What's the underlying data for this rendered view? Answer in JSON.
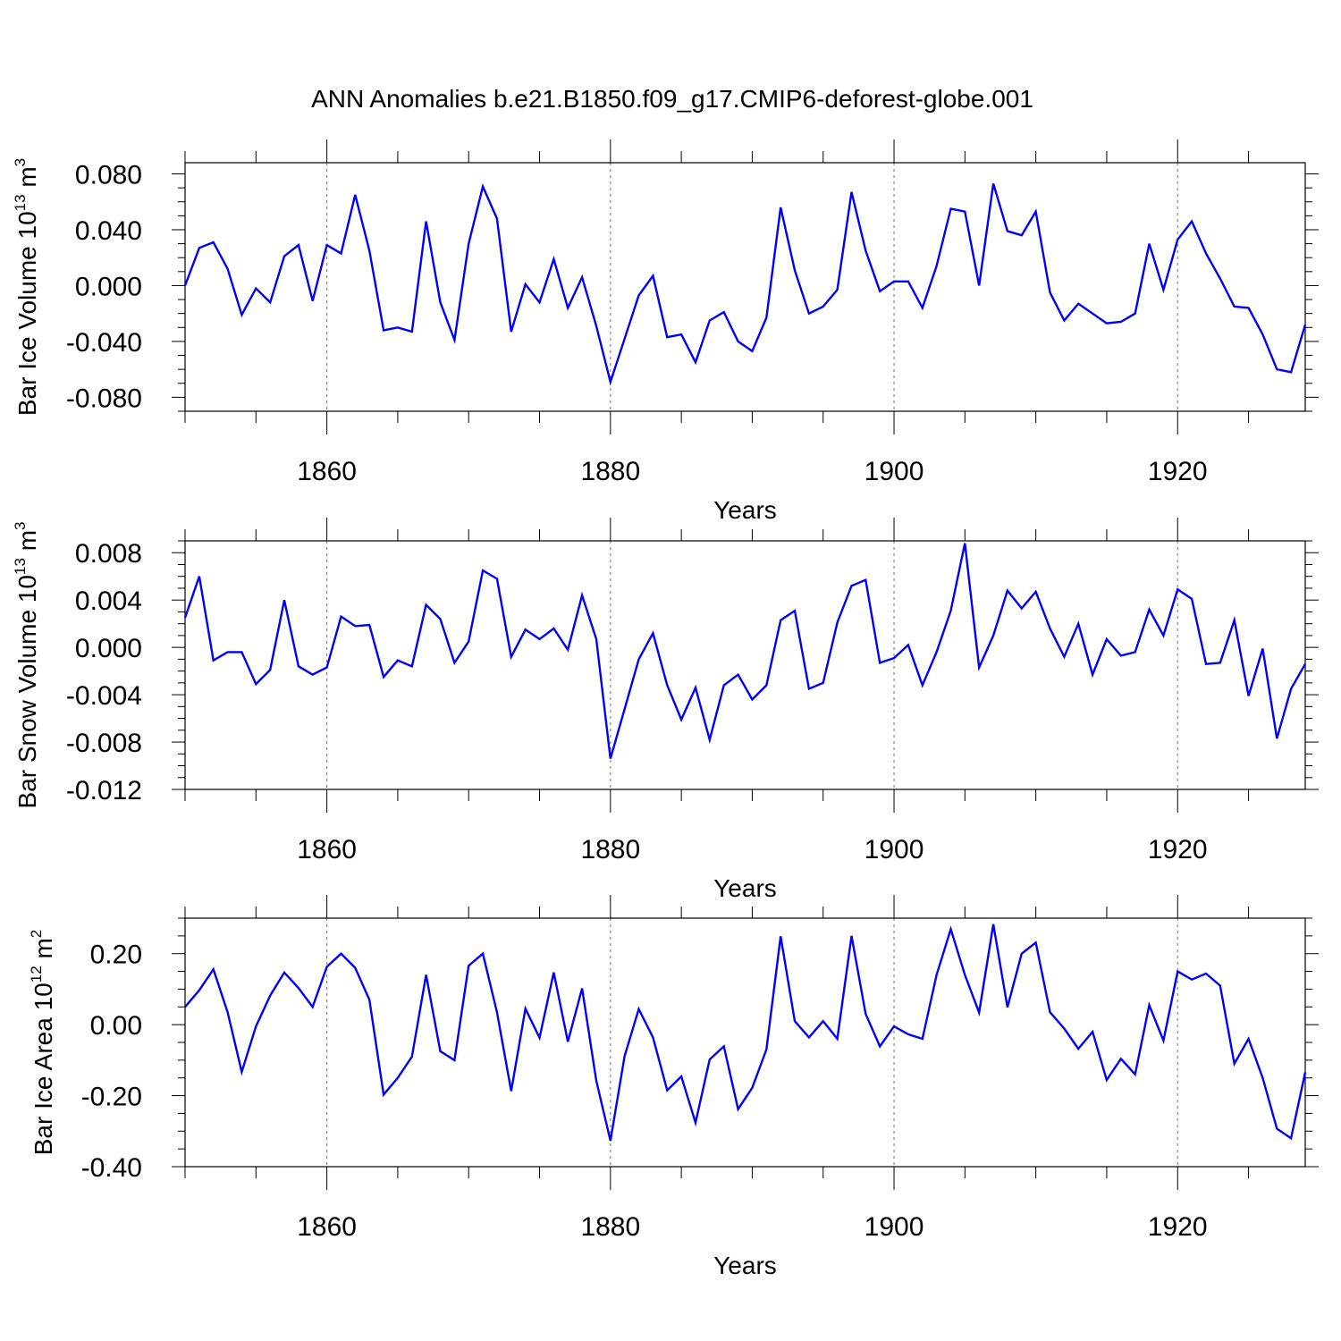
{
  "title": "ANN Anomalies b.e21.B1850.f09_g17.CMIP6-deforest-globe.001",
  "line_color": "#0000ff",
  "chart_data": [
    {
      "type": "line",
      "ylabel": "Bar Ice Volume",
      "yunit_base": "10",
      "yunit_exp": "13",
      "yunit_name": "m",
      "yunit_pow": "3",
      "xlabel": "Years",
      "xlim": [
        1850,
        1929
      ],
      "ylim": [
        -0.09,
        0.088
      ],
      "yticks": [
        -0.08,
        -0.04,
        0.0,
        0.04,
        0.08
      ],
      "ytick_labels": [
        "-0.080",
        "-0.040",
        "0.000",
        "0.040",
        "0.080"
      ],
      "xticks": [
        1860,
        1880,
        1900,
        1920
      ],
      "xtick_labels": [
        "1860",
        "1880",
        "1900",
        "1920"
      ],
      "grid": "dashed vertical at major x ticks",
      "x": [
        1850,
        1851,
        1852,
        1853,
        1854,
        1855,
        1856,
        1857,
        1858,
        1859,
        1860,
        1861,
        1862,
        1863,
        1864,
        1865,
        1866,
        1867,
        1868,
        1869,
        1870,
        1871,
        1872,
        1873,
        1874,
        1875,
        1876,
        1877,
        1878,
        1879,
        1880,
        1881,
        1882,
        1883,
        1884,
        1885,
        1886,
        1887,
        1888,
        1889,
        1890,
        1891,
        1892,
        1893,
        1894,
        1895,
        1896,
        1897,
        1898,
        1899,
        1900,
        1901,
        1902,
        1903,
        1904,
        1905,
        1906,
        1907,
        1908,
        1909,
        1910,
        1911,
        1912,
        1913,
        1914,
        1915,
        1916,
        1917,
        1918,
        1919,
        1920,
        1921,
        1922,
        1923,
        1924,
        1925,
        1926,
        1927,
        1928,
        1929
      ],
      "values": [
        0.0,
        0.027,
        0.031,
        0.012,
        -0.021,
        -0.002,
        -0.012,
        0.021,
        0.029,
        -0.011,
        0.029,
        0.023,
        0.065,
        0.025,
        -0.032,
        -0.03,
        -0.033,
        0.046,
        -0.012,
        -0.039,
        0.03,
        0.071,
        0.048,
        -0.033,
        0.001,
        -0.012,
        0.019,
        -0.016,
        0.006,
        -0.029,
        -0.069,
        -0.038,
        -0.007,
        0.007,
        -0.037,
        -0.035,
        -0.055,
        -0.025,
        -0.019,
        -0.04,
        -0.047,
        -0.023,
        0.056,
        0.011,
        -0.02,
        -0.015,
        -0.003,
        0.067,
        0.025,
        -0.004,
        0.003,
        0.003,
        -0.016,
        0.014,
        0.055,
        0.053,
        0.0,
        0.073,
        0.039,
        0.036,
        0.053,
        -0.005,
        -0.025,
        -0.013,
        -0.02,
        -0.027,
        -0.026,
        -0.02,
        0.03,
        -0.003,
        0.033,
        0.046,
        0.023,
        0.005,
        -0.015,
        -0.016,
        -0.035,
        -0.06,
        -0.062,
        -0.028
      ]
    },
    {
      "type": "line",
      "ylabel": "Bar Snow Volume",
      "yunit_base": "10",
      "yunit_exp": "13",
      "yunit_name": "m",
      "yunit_pow": "3",
      "xlabel": "Years",
      "xlim": [
        1850,
        1929
      ],
      "ylim": [
        -0.012,
        0.009
      ],
      "yticks": [
        -0.012,
        -0.008,
        -0.004,
        0.0,
        0.004,
        0.008
      ],
      "ytick_labels": [
        "-0.012",
        "-0.008",
        "-0.004",
        "0.000",
        "0.004",
        "0.008"
      ],
      "xticks": [
        1860,
        1880,
        1900,
        1920
      ],
      "xtick_labels": [
        "1860",
        "1880",
        "1900",
        "1920"
      ],
      "grid": "dashed vertical at major x ticks",
      "x": [
        1850,
        1851,
        1852,
        1853,
        1854,
        1855,
        1856,
        1857,
        1858,
        1859,
        1860,
        1861,
        1862,
        1863,
        1864,
        1865,
        1866,
        1867,
        1868,
        1869,
        1870,
        1871,
        1872,
        1873,
        1874,
        1875,
        1876,
        1877,
        1878,
        1879,
        1880,
        1881,
        1882,
        1883,
        1884,
        1885,
        1886,
        1887,
        1888,
        1889,
        1890,
        1891,
        1892,
        1893,
        1894,
        1895,
        1896,
        1897,
        1898,
        1899,
        1900,
        1901,
        1902,
        1903,
        1904,
        1905,
        1906,
        1907,
        1908,
        1909,
        1910,
        1911,
        1912,
        1913,
        1914,
        1915,
        1916,
        1917,
        1918,
        1919,
        1920,
        1921,
        1922,
        1923,
        1924,
        1925,
        1926,
        1927,
        1928,
        1929
      ],
      "values": [
        0.0025,
        0.006,
        -0.0011,
        -0.0004,
        -0.0004,
        -0.0031,
        -0.0019,
        0.004,
        -0.0016,
        -0.0023,
        -0.0017,
        0.0026,
        0.0018,
        0.0019,
        -0.0025,
        -0.0011,
        -0.0016,
        0.0036,
        0.0024,
        -0.0013,
        0.0005,
        0.0065,
        0.0058,
        -0.0008,
        0.0015,
        0.0007,
        0.0016,
        -0.0002,
        0.0044,
        0.0007,
        -0.0094,
        -0.0052,
        -0.001,
        0.0012,
        -0.0032,
        -0.0061,
        -0.0034,
        -0.0078,
        -0.0032,
        -0.0023,
        -0.0044,
        -0.0032,
        0.0023,
        0.0031,
        -0.0035,
        -0.003,
        0.0021,
        0.0052,
        0.0057,
        -0.0013,
        -0.0009,
        0.0002,
        -0.0032,
        -0.0004,
        0.0031,
        0.0088,
        -0.0017,
        0.001,
        0.0048,
        0.0033,
        0.0047,
        0.0016,
        -0.0008,
        0.002,
        -0.0023,
        0.0007,
        -0.0007,
        -0.0004,
        0.0032,
        0.001,
        0.0049,
        0.0041,
        -0.0014,
        -0.0013,
        0.0023,
        -0.0041,
        -0.0001,
        -0.0077,
        -0.0035,
        -0.0014
      ]
    },
    {
      "type": "line",
      "ylabel": "Bar Ice Area",
      "yunit_base": "10",
      "yunit_exp": "12",
      "yunit_name": "m",
      "yunit_pow": "2",
      "xlabel": "Years",
      "xlim": [
        1850,
        1929
      ],
      "ylim": [
        -0.4,
        0.3
      ],
      "yticks": [
        -0.4,
        -0.2,
        0.0,
        0.2
      ],
      "ytick_labels": [
        "-0.40",
        "-0.20",
        "0.00",
        "0.20"
      ],
      "xticks": [
        1860,
        1880,
        1900,
        1920
      ],
      "xtick_labels": [
        "1860",
        "1880",
        "1900",
        "1920"
      ],
      "grid": "dashed vertical at major x ticks",
      "x": [
        1850,
        1851,
        1852,
        1853,
        1854,
        1855,
        1856,
        1857,
        1858,
        1859,
        1860,
        1861,
        1862,
        1863,
        1864,
        1865,
        1866,
        1867,
        1868,
        1869,
        1870,
        1871,
        1872,
        1873,
        1874,
        1875,
        1876,
        1877,
        1878,
        1879,
        1880,
        1881,
        1882,
        1883,
        1884,
        1885,
        1886,
        1887,
        1888,
        1889,
        1890,
        1891,
        1892,
        1893,
        1894,
        1895,
        1896,
        1897,
        1898,
        1899,
        1900,
        1901,
        1902,
        1903,
        1904,
        1905,
        1906,
        1907,
        1908,
        1909,
        1910,
        1911,
        1912,
        1913,
        1914,
        1915,
        1916,
        1917,
        1918,
        1919,
        1920,
        1921,
        1922,
        1923,
        1924,
        1925,
        1926,
        1927,
        1928,
        1929
      ],
      "values": [
        0.05,
        0.097,
        0.156,
        0.035,
        -0.133,
        -0.005,
        0.082,
        0.147,
        0.103,
        0.05,
        0.163,
        0.2,
        0.16,
        0.07,
        -0.197,
        -0.15,
        -0.09,
        0.14,
        -0.075,
        -0.1,
        0.166,
        0.2,
        0.035,
        -0.187,
        0.045,
        -0.037,
        0.147,
        -0.048,
        0.102,
        -0.158,
        -0.327,
        -0.088,
        0.044,
        -0.036,
        -0.185,
        -0.146,
        -0.276,
        -0.098,
        -0.061,
        -0.238,
        -0.178,
        -0.07,
        0.249,
        0.01,
        -0.036,
        0.01,
        -0.04,
        0.25,
        0.03,
        -0.061,
        -0.005,
        -0.027,
        -0.04,
        0.14,
        0.269,
        0.14,
        0.034,
        0.283,
        0.049,
        0.2,
        0.231,
        0.035,
        -0.011,
        -0.068,
        -0.02,
        -0.156,
        -0.096,
        -0.14,
        0.055,
        -0.045,
        0.15,
        0.127,
        0.144,
        0.11,
        -0.11,
        -0.04,
        -0.15,
        -0.293,
        -0.32,
        -0.134
      ]
    }
  ]
}
